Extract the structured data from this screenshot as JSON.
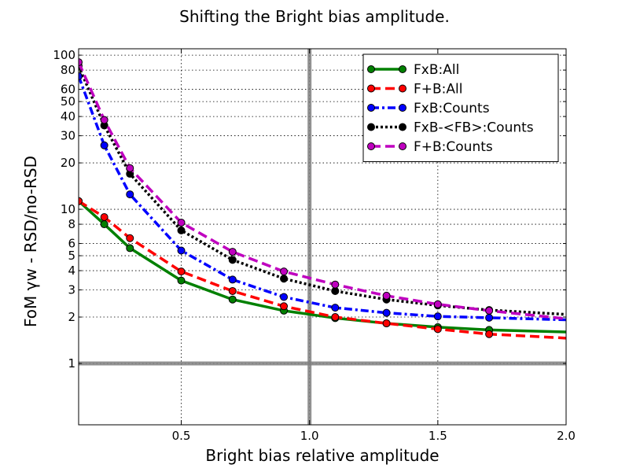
{
  "chart_data": {
    "type": "line",
    "title": "Shifting the Bright bias amplitude.",
    "xlabel": "Bright bias relative amplitude",
    "ylabel": "FoM γw - RSD/no-RSD",
    "xlim": [
      0.1,
      2.0
    ],
    "ylim": [
      0.4,
      110
    ],
    "yscale": "log",
    "grid": true,
    "legend_position": "top-right",
    "x_ticks": [
      {
        "value": 0.5,
        "label": "0.5"
      },
      {
        "value": 1.0,
        "label": "1.0"
      },
      {
        "value": 1.5,
        "label": "1.5"
      },
      {
        "value": 2.0,
        "label": "2.0"
      }
    ],
    "y_ticks": [
      {
        "value": 1,
        "label": "1"
      },
      {
        "value": 2,
        "label": "2"
      },
      {
        "value": 3,
        "label": "3"
      },
      {
        "value": 4,
        "label": "4"
      },
      {
        "value": 5,
        "label": "5"
      },
      {
        "value": 6,
        "label": "6"
      },
      {
        "value": 8,
        "label": "8"
      },
      {
        "value": 10,
        "label": "10"
      },
      {
        "value": 20,
        "label": "20"
      },
      {
        "value": 30,
        "label": "30"
      },
      {
        "value": 40,
        "label": "40"
      },
      {
        "value": 50,
        "label": "50"
      },
      {
        "value": 60,
        "label": "60"
      },
      {
        "value": 80,
        "label": "80"
      },
      {
        "value": 100,
        "label": "100"
      }
    ],
    "reference_lines": [
      {
        "axis": "x",
        "value": 1.0
      },
      {
        "axis": "y",
        "value": 1.0
      }
    ],
    "marker_x": [
      0.1,
      0.2,
      0.3,
      0.5,
      0.7,
      0.9,
      1.1,
      1.3,
      1.5,
      1.7
    ],
    "series": [
      {
        "name": "FxB:All",
        "color": "#008000",
        "dash": "solid",
        "x": [
          0.1,
          0.2,
          0.3,
          0.5,
          0.7,
          0.9,
          1.1,
          1.3,
          1.5,
          1.7,
          2.0
        ],
        "values": [
          11.3,
          8.0,
          5.6,
          3.45,
          2.6,
          2.2,
          1.97,
          1.82,
          1.72,
          1.65,
          1.6
        ]
      },
      {
        "name": "F+B:All",
        "color": "#ff0000",
        "dash": "dashed",
        "x": [
          0.1,
          0.2,
          0.3,
          0.5,
          0.7,
          0.9,
          1.1,
          1.3,
          1.5,
          1.7,
          2.0
        ],
        "values": [
          11.3,
          8.9,
          6.5,
          3.95,
          2.95,
          2.35,
          2.0,
          1.82,
          1.67,
          1.55,
          1.46
        ]
      },
      {
        "name": "FxB:Counts",
        "color": "#0000ff",
        "dash": "dashdot",
        "x": [
          0.1,
          0.2,
          0.3,
          0.5,
          0.7,
          0.9,
          1.1,
          1.3,
          1.5,
          1.7,
          2.0
        ],
        "values": [
          73,
          26,
          12.5,
          5.4,
          3.5,
          2.7,
          2.3,
          2.13,
          2.02,
          1.98,
          1.92
        ]
      },
      {
        "name": "FxB-<FB>:Counts",
        "color": "#000000",
        "dash": "dotted",
        "x": [
          0.1,
          0.2,
          0.3,
          0.5,
          0.7,
          0.9,
          1.1,
          1.3,
          1.5,
          1.7,
          2.0
        ],
        "values": [
          85,
          35,
          17,
          7.3,
          4.7,
          3.55,
          2.95,
          2.6,
          2.38,
          2.22,
          2.08
        ]
      },
      {
        "name": "F+B:Counts",
        "color": "#bf00bf",
        "dash": "dashed",
        "x": [
          0.1,
          0.2,
          0.3,
          0.5,
          0.7,
          0.9,
          1.1,
          1.3,
          1.5,
          1.7,
          2.0
        ],
        "values": [
          90,
          38,
          18.5,
          8.2,
          5.3,
          3.95,
          3.25,
          2.75,
          2.42,
          2.2,
          1.95
        ]
      }
    ]
  }
}
